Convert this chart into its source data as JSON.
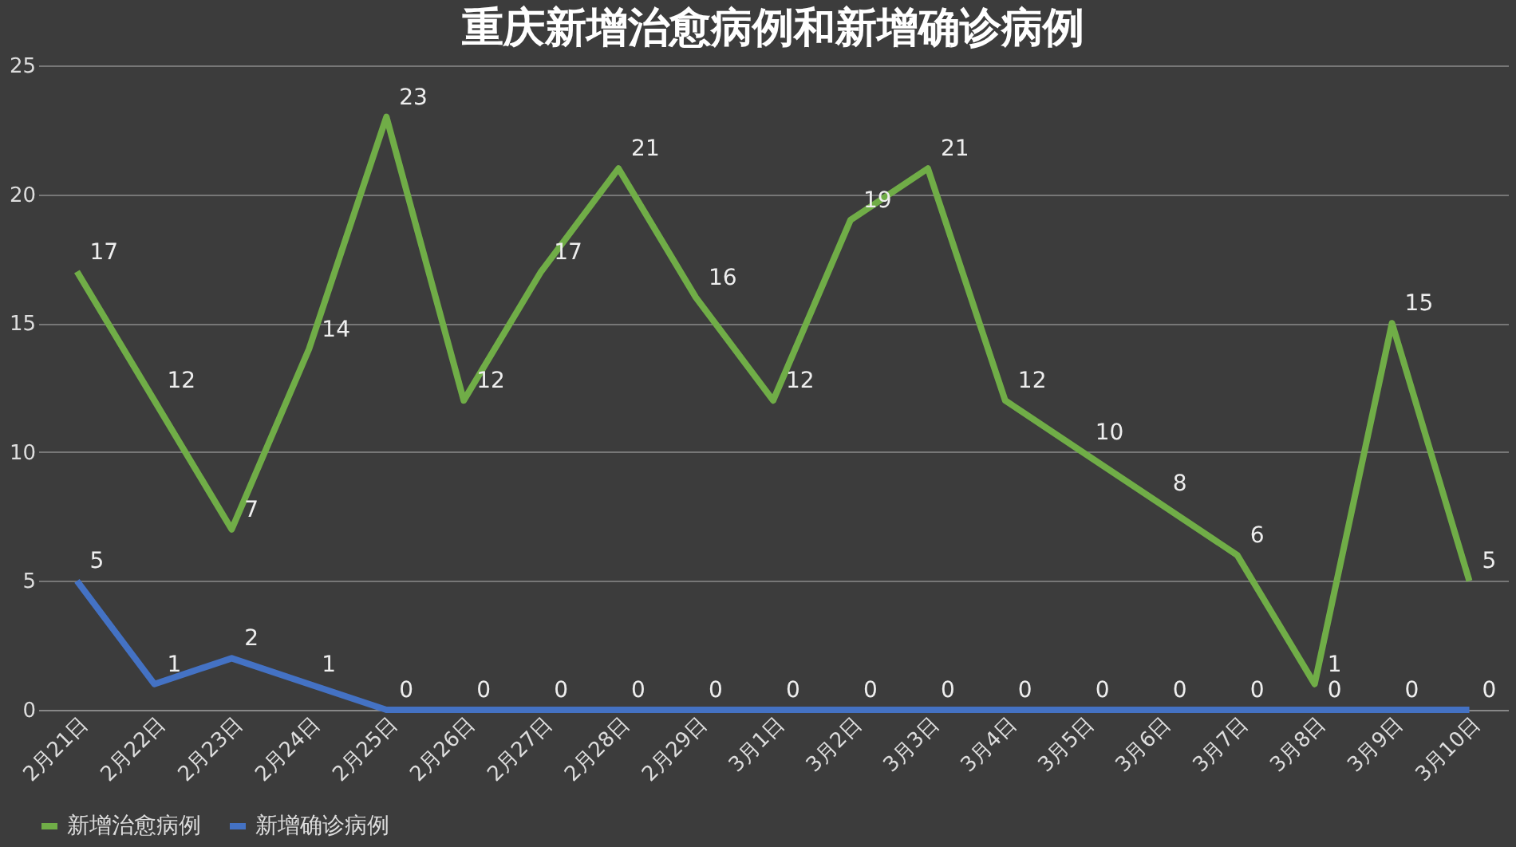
{
  "chart_data": {
    "type": "line",
    "title": "重庆新增治愈病例和新增确诊病例",
    "categories": [
      "2月21日",
      "2月22日",
      "2月23日",
      "2月24日",
      "2月25日",
      "2月26日",
      "2月27日",
      "2月28日",
      "2月29日",
      "3月1日",
      "3月2日",
      "3月3日",
      "3月4日",
      "3月5日",
      "3月6日",
      "3月7日",
      "3月8日",
      "3月9日",
      "3月10日"
    ],
    "series": [
      {
        "name": "新增治愈病例",
        "color": "#70ad47",
        "values": [
          17,
          12,
          7,
          14,
          23,
          12,
          17,
          21,
          16,
          12,
          19,
          21,
          12,
          10,
          8,
          6,
          1,
          15,
          5
        ]
      },
      {
        "name": "新增确诊病例",
        "color": "#4472c4",
        "values": [
          5,
          1,
          2,
          1,
          0,
          0,
          0,
          0,
          0,
          0,
          0,
          0,
          0,
          0,
          0,
          0,
          0,
          0,
          0
        ]
      }
    ],
    "ylim": [
      0,
      25
    ],
    "yticks": [
      0,
      5,
      10,
      15,
      20,
      25
    ],
    "grid": "y",
    "legend": "bottom",
    "data_labels": true,
    "marker": "none",
    "line_style": "solid"
  }
}
